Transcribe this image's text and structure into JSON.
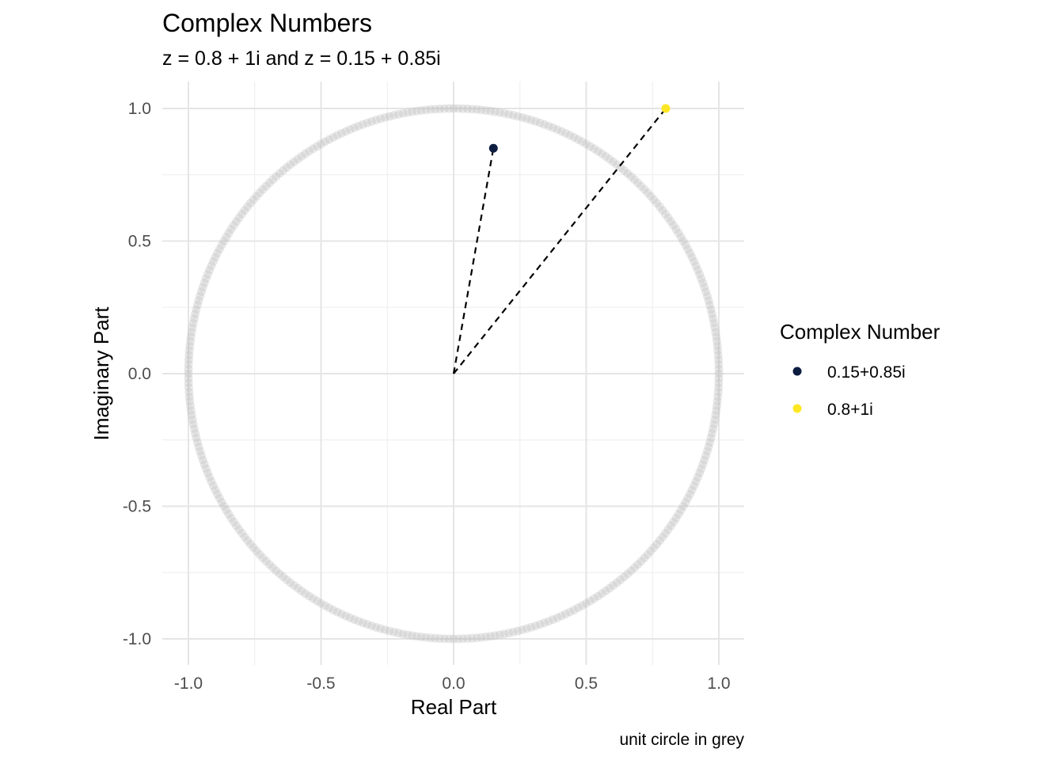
{
  "chart_data": {
    "type": "scatter",
    "title": "Complex Numbers",
    "subtitle": "z = 0.8 + 1i and z = 0.15 + 0.85i",
    "xlabel": "Real Part",
    "ylabel": "Imaginary Part",
    "caption": "unit circle in grey",
    "xlim": [
      -1.1,
      1.1
    ],
    "ylim": [
      -1.1,
      1.1
    ],
    "x_ticks": [
      -1.0,
      -0.5,
      0.0,
      0.5,
      1.0
    ],
    "y_ticks": [
      -1.0,
      -0.5,
      0.0,
      0.5,
      1.0
    ],
    "x_tick_labels": [
      "-1.0",
      "-0.5",
      "0.0",
      "0.5",
      "1.0"
    ],
    "y_tick_labels": [
      "-1.0",
      "-0.5",
      "0.0",
      "0.5",
      "1.0"
    ],
    "grid": true,
    "unit_circle": {
      "radius": 1,
      "color": "#bebebe"
    },
    "legend": {
      "title": "Complex Number",
      "placement": "right",
      "entries": [
        {
          "label": "0.15+0.85i",
          "color": "#0c1d40"
        },
        {
          "label": "0.8+1i",
          "color": "#fde725"
        }
      ]
    },
    "series": [
      {
        "name": "0.15+0.85i",
        "x": 0.15,
        "y": 0.85,
        "color": "#0c1d40"
      },
      {
        "name": "0.8+1i",
        "x": 0.8,
        "y": 1.0,
        "color": "#fde725"
      }
    ],
    "vectors": [
      {
        "from": [
          0,
          0
        ],
        "to": [
          0.15,
          0.85
        ],
        "style": "dashed",
        "color": "#000000"
      },
      {
        "from": [
          0,
          0
        ],
        "to": [
          0.8,
          1.0
        ],
        "style": "dashed",
        "color": "#000000"
      }
    ]
  }
}
